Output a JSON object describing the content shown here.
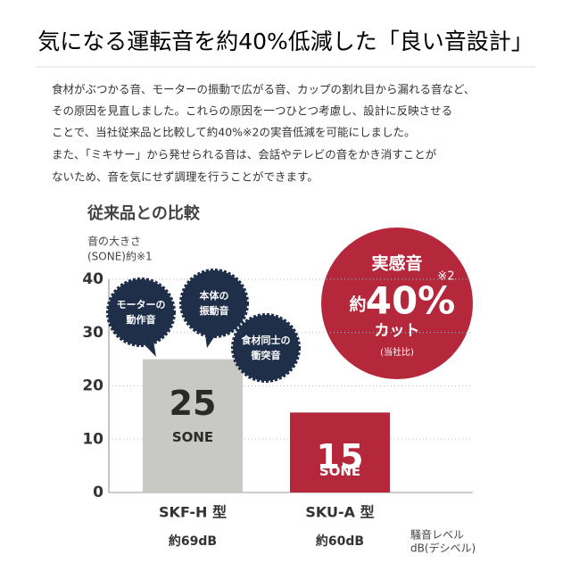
{
  "header": {
    "title": "気になる運転音を約40%低減した「良い音設計」"
  },
  "body": {
    "paragraph": [
      "食材がぶつかる音、モーターの振動で広がる音、カップの割れ目から漏れる音など、",
      "その原因を見直しました。これらの原因を一つひとつ考慮し、設計に反映させる",
      "ことで、当社従来品と比較して約40%※2の実音低減を可能にしました。",
      "また、「ミキサー」から発せられる音は、会話やテレビの音をかき消すことが",
      "ないため、音を気にせず調理を行うことができます。"
    ]
  },
  "chart_data": {
    "type": "bar",
    "title": "従来品との比較",
    "y_label": [
      "音の大きさ",
      "(SONE)約※1"
    ],
    "categories": [
      "SKF-H 型",
      "SKU-A 型"
    ],
    "values": [
      25,
      15
    ],
    "colors": [
      "#c8c9c5",
      "#b5283b"
    ],
    "value_unit": "SONE",
    "db_labels": [
      "約69dB",
      "約60dB"
    ],
    "x_note": [
      "騒音レベル",
      "dB(デシベル)"
    ],
    "ylim": [
      0,
      40
    ],
    "yticks": [
      0,
      10,
      20,
      30,
      40
    ],
    "grid": true,
    "bubbles": [
      [
        "モーターの",
        "動作音"
      ],
      [
        "本体の",
        "振動音"
      ],
      [
        "食材同士の",
        "衝突音"
      ]
    ],
    "badge": {
      "top": "実感音",
      "prefix": "約",
      "big": "40%",
      "note": "※2",
      "bottom": "カット",
      "small": "(当社比)"
    }
  }
}
